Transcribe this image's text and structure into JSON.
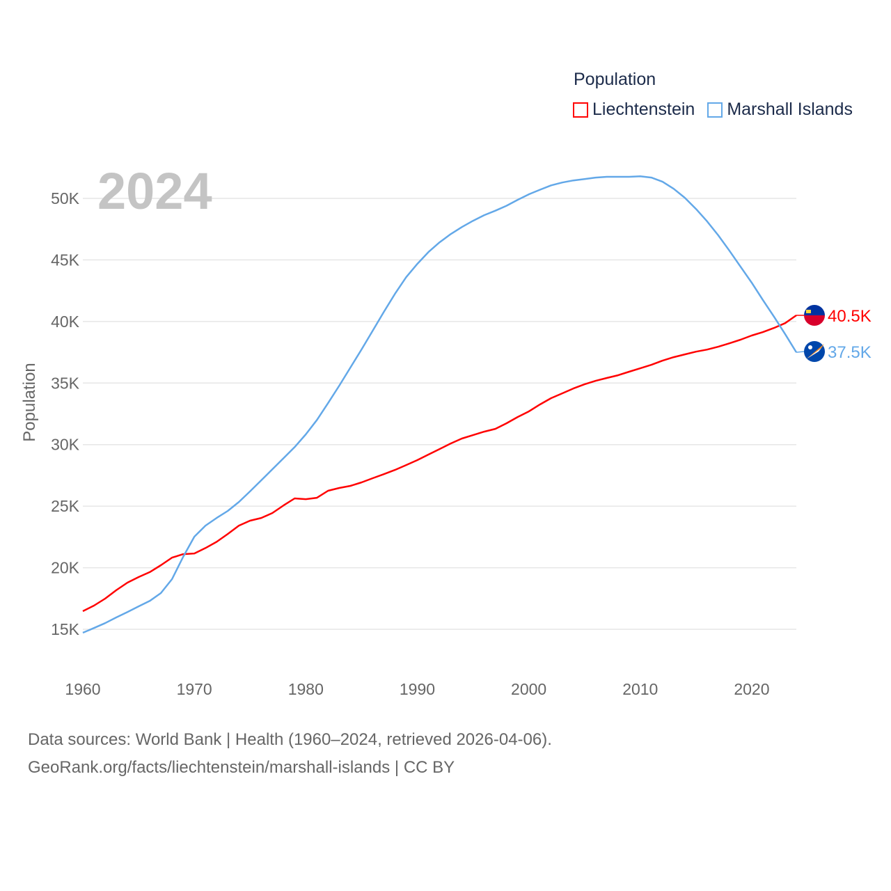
{
  "chart_data": {
    "type": "line",
    "title": "2024",
    "ylabel": "Population",
    "xlabel": "",
    "xlim": [
      1960,
      2024
    ],
    "ylim": [
      15000,
      52000
    ],
    "x_ticks": [
      1960,
      1970,
      1980,
      1990,
      2000,
      2010,
      2020
    ],
    "x_tick_labels": [
      "1960",
      "1970",
      "1980",
      "1990",
      "2000",
      "2010",
      "2020"
    ],
    "y_ticks": [
      15000,
      20000,
      25000,
      30000,
      35000,
      40000,
      45000,
      50000
    ],
    "y_tick_labels": [
      "15K",
      "20K",
      "25K",
      "30K",
      "35K",
      "40K",
      "45K",
      "50K"
    ],
    "grid": true,
    "legend_title": "Population",
    "legend_position": "top-right",
    "x": [
      1960,
      1961,
      1962,
      1963,
      1964,
      1965,
      1966,
      1967,
      1968,
      1969,
      1970,
      1971,
      1972,
      1973,
      1974,
      1975,
      1976,
      1977,
      1978,
      1979,
      1980,
      1981,
      1982,
      1983,
      1984,
      1985,
      1986,
      1987,
      1988,
      1989,
      1990,
      1991,
      1992,
      1993,
      1994,
      1995,
      1996,
      1997,
      1998,
      1999,
      2000,
      2001,
      2002,
      2003,
      2004,
      2005,
      2006,
      2007,
      2008,
      2009,
      2010,
      2011,
      2012,
      2013,
      2014,
      2015,
      2016,
      2017,
      2018,
      2019,
      2020,
      2021,
      2022,
      2023,
      2024
    ],
    "series": [
      {
        "name": "Liechtenstein",
        "color": "#ff0000",
        "end_label": "40.5K",
        "flag": "liechtenstein-flag",
        "values": [
          16470,
          16920,
          17490,
          18170,
          18790,
          19240,
          19640,
          20200,
          20820,
          21100,
          21160,
          21600,
          22100,
          22740,
          23420,
          23820,
          24040,
          24440,
          25060,
          25630,
          25570,
          25680,
          26250,
          26480,
          26650,
          26930,
          27270,
          27600,
          27940,
          28340,
          28740,
          29190,
          29640,
          30090,
          30490,
          30770,
          31050,
          31280,
          31730,
          32240,
          32690,
          33260,
          33770,
          34160,
          34560,
          34900,
          35180,
          35410,
          35630,
          35920,
          36200,
          36480,
          36820,
          37100,
          37330,
          37550,
          37720,
          37950,
          38230,
          38520,
          38860,
          39140,
          39480,
          39870,
          40500
        ]
      },
      {
        "name": "Marshall Islands",
        "color": "#63a8e8",
        "end_label": "37.5K",
        "flag": "marshall-islands-flag",
        "values": [
          14720,
          15100,
          15500,
          15960,
          16400,
          16860,
          17300,
          17940,
          19070,
          20880,
          22520,
          23420,
          24040,
          24610,
          25340,
          26200,
          27100,
          28000,
          28900,
          29800,
          30830,
          32000,
          33370,
          34790,
          36260,
          37730,
          39250,
          40780,
          42250,
          43600,
          44680,
          45640,
          46430,
          47100,
          47670,
          48180,
          48640,
          49000,
          49400,
          49880,
          50330,
          50700,
          51060,
          51290,
          51460,
          51570,
          51690,
          51750,
          51750,
          51750,
          51800,
          51690,
          51350,
          50780,
          50050,
          49140,
          48130,
          47000,
          45750,
          44450,
          43150,
          41740,
          40380,
          38970,
          37500
        ]
      }
    ]
  },
  "footer": {
    "line1": "Data sources: World Bank | Health (1960–2024, retrieved 2026-04-06).",
    "line2": "GeoRank.org/facts/liechtenstein/marshall-islands | CC BY"
  }
}
